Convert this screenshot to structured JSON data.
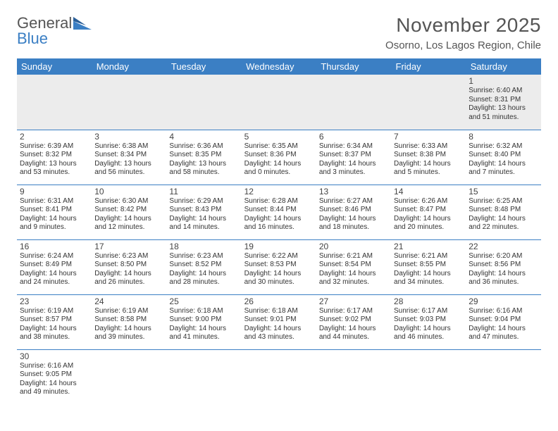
{
  "brand": {
    "part1": "General",
    "part2": "Blue"
  },
  "title": "November 2025",
  "location": "Osorno, Los Lagos Region, Chile",
  "colors": {
    "accent": "#3b7fc4",
    "text": "#555",
    "muted_bg": "#ececec"
  },
  "weekdays": [
    "Sunday",
    "Monday",
    "Tuesday",
    "Wednesday",
    "Thursday",
    "Friday",
    "Saturday"
  ],
  "days": {
    "1": {
      "sunrise": "6:40 AM",
      "sunset": "8:31 PM",
      "daylight_h": 13,
      "daylight_m": 51
    },
    "2": {
      "sunrise": "6:39 AM",
      "sunset": "8:32 PM",
      "daylight_h": 13,
      "daylight_m": 53
    },
    "3": {
      "sunrise": "6:38 AM",
      "sunset": "8:34 PM",
      "daylight_h": 13,
      "daylight_m": 56
    },
    "4": {
      "sunrise": "6:36 AM",
      "sunset": "8:35 PM",
      "daylight_h": 13,
      "daylight_m": 58
    },
    "5": {
      "sunrise": "6:35 AM",
      "sunset": "8:36 PM",
      "daylight_h": 14,
      "daylight_m": 0
    },
    "6": {
      "sunrise": "6:34 AM",
      "sunset": "8:37 PM",
      "daylight_h": 14,
      "daylight_m": 3
    },
    "7": {
      "sunrise": "6:33 AM",
      "sunset": "8:38 PM",
      "daylight_h": 14,
      "daylight_m": 5
    },
    "8": {
      "sunrise": "6:32 AM",
      "sunset": "8:40 PM",
      "daylight_h": 14,
      "daylight_m": 7
    },
    "9": {
      "sunrise": "6:31 AM",
      "sunset": "8:41 PM",
      "daylight_h": 14,
      "daylight_m": 9
    },
    "10": {
      "sunrise": "6:30 AM",
      "sunset": "8:42 PM",
      "daylight_h": 14,
      "daylight_m": 12
    },
    "11": {
      "sunrise": "6:29 AM",
      "sunset": "8:43 PM",
      "daylight_h": 14,
      "daylight_m": 14
    },
    "12": {
      "sunrise": "6:28 AM",
      "sunset": "8:44 PM",
      "daylight_h": 14,
      "daylight_m": 16
    },
    "13": {
      "sunrise": "6:27 AM",
      "sunset": "8:46 PM",
      "daylight_h": 14,
      "daylight_m": 18
    },
    "14": {
      "sunrise": "6:26 AM",
      "sunset": "8:47 PM",
      "daylight_h": 14,
      "daylight_m": 20
    },
    "15": {
      "sunrise": "6:25 AM",
      "sunset": "8:48 PM",
      "daylight_h": 14,
      "daylight_m": 22
    },
    "16": {
      "sunrise": "6:24 AM",
      "sunset": "8:49 PM",
      "daylight_h": 14,
      "daylight_m": 24
    },
    "17": {
      "sunrise": "6:23 AM",
      "sunset": "8:50 PM",
      "daylight_h": 14,
      "daylight_m": 26
    },
    "18": {
      "sunrise": "6:23 AM",
      "sunset": "8:52 PM",
      "daylight_h": 14,
      "daylight_m": 28
    },
    "19": {
      "sunrise": "6:22 AM",
      "sunset": "8:53 PM",
      "daylight_h": 14,
      "daylight_m": 30
    },
    "20": {
      "sunrise": "6:21 AM",
      "sunset": "8:54 PM",
      "daylight_h": 14,
      "daylight_m": 32
    },
    "21": {
      "sunrise": "6:21 AM",
      "sunset": "8:55 PM",
      "daylight_h": 14,
      "daylight_m": 34
    },
    "22": {
      "sunrise": "6:20 AM",
      "sunset": "8:56 PM",
      "daylight_h": 14,
      "daylight_m": 36
    },
    "23": {
      "sunrise": "6:19 AM",
      "sunset": "8:57 PM",
      "daylight_h": 14,
      "daylight_m": 38
    },
    "24": {
      "sunrise": "6:19 AM",
      "sunset": "8:58 PM",
      "daylight_h": 14,
      "daylight_m": 39
    },
    "25": {
      "sunrise": "6:18 AM",
      "sunset": "9:00 PM",
      "daylight_h": 14,
      "daylight_m": 41
    },
    "26": {
      "sunrise": "6:18 AM",
      "sunset": "9:01 PM",
      "daylight_h": 14,
      "daylight_m": 43
    },
    "27": {
      "sunrise": "6:17 AM",
      "sunset": "9:02 PM",
      "daylight_h": 14,
      "daylight_m": 44
    },
    "28": {
      "sunrise": "6:17 AM",
      "sunset": "9:03 PM",
      "daylight_h": 14,
      "daylight_m": 46
    },
    "29": {
      "sunrise": "6:16 AM",
      "sunset": "9:04 PM",
      "daylight_h": 14,
      "daylight_m": 47
    },
    "30": {
      "sunrise": "6:16 AM",
      "sunset": "9:05 PM",
      "daylight_h": 14,
      "daylight_m": 49
    }
  },
  "layout": [
    [
      null,
      null,
      null,
      null,
      null,
      null,
      "1"
    ],
    [
      "2",
      "3",
      "4",
      "5",
      "6",
      "7",
      "8"
    ],
    [
      "9",
      "10",
      "11",
      "12",
      "13",
      "14",
      "15"
    ],
    [
      "16",
      "17",
      "18",
      "19",
      "20",
      "21",
      "22"
    ],
    [
      "23",
      "24",
      "25",
      "26",
      "27",
      "28",
      "29"
    ],
    [
      "30",
      null,
      null,
      null,
      null,
      null,
      null
    ]
  ],
  "labels": {
    "sunrise": "Sunrise:",
    "sunset": "Sunset:",
    "daylight": "Daylight:",
    "hours": "hours",
    "and": "and",
    "minutes": "minutes."
  }
}
